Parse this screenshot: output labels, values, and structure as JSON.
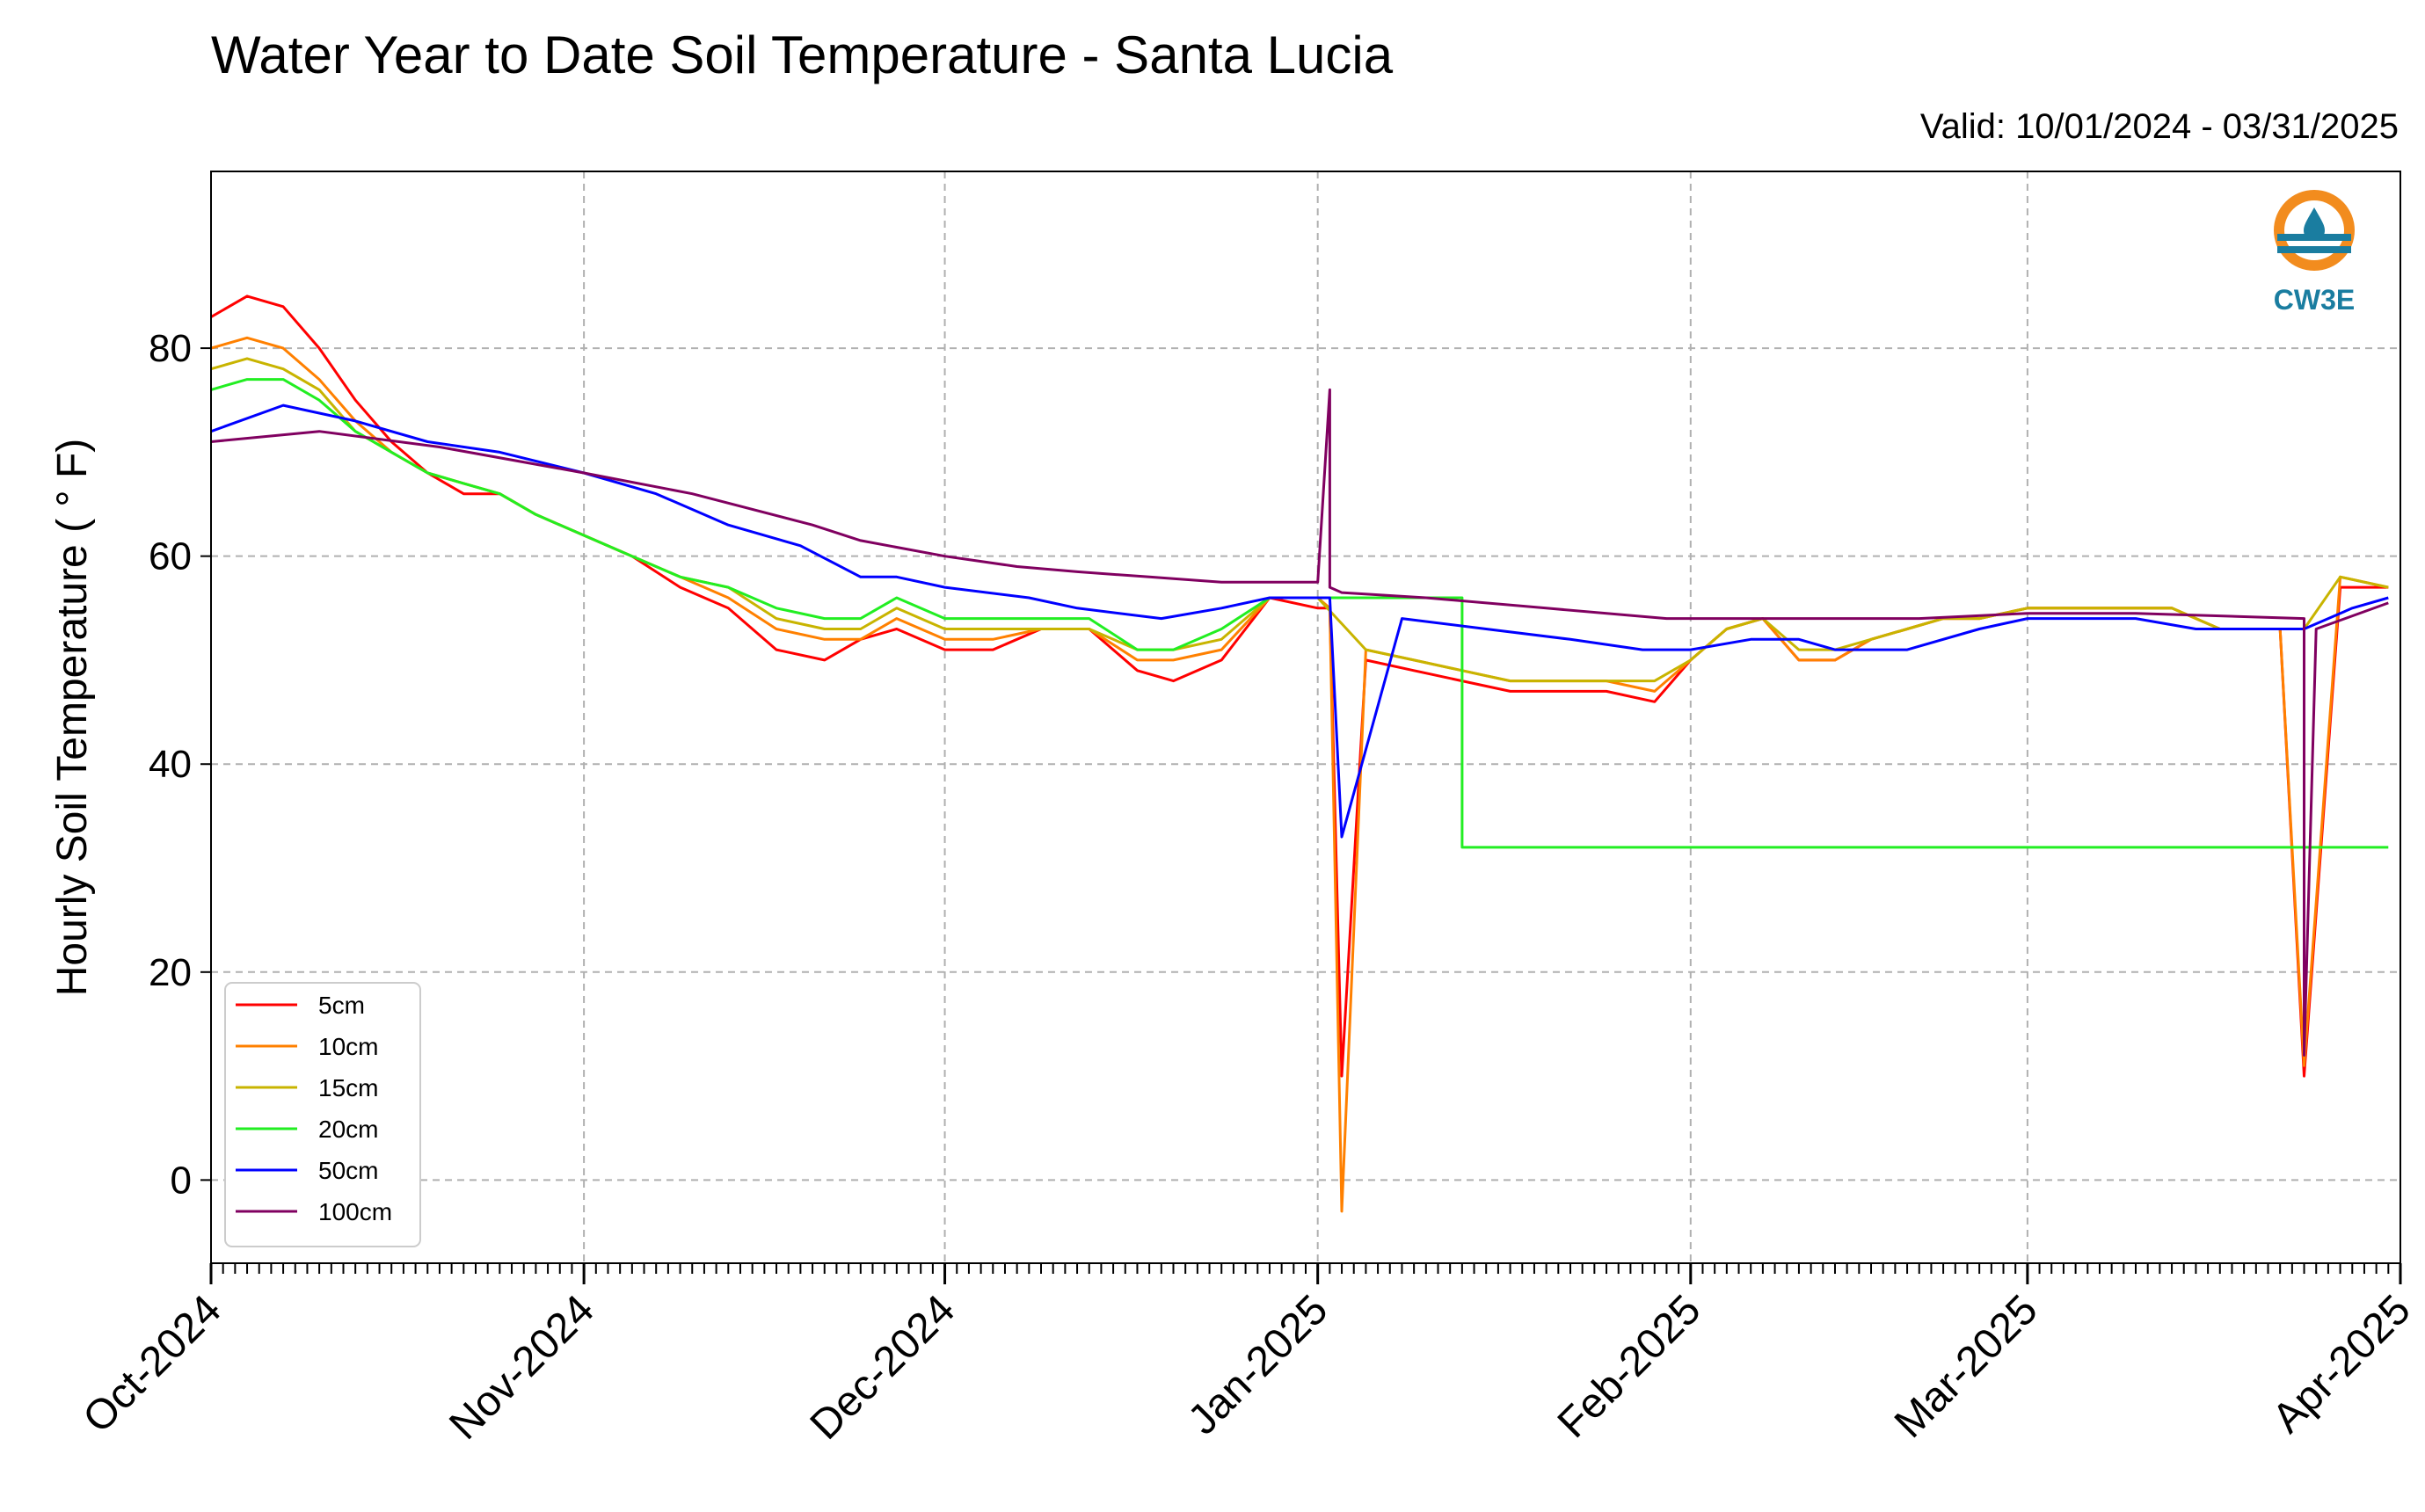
{
  "title": "Water Year to Date Soil Temperature - Santa Lucia",
  "valid": "Valid: 10/01/2024 - 03/31/2025",
  "logo_text": "CW3E",
  "chart_data": {
    "type": "line",
    "title": "Water Year to Date Soil Temperature - Santa Lucia",
    "ylabel": "Hourly Soil Temperature ( ° F)",
    "xlabel": "",
    "xlim": [
      "2024-10-01",
      "2025-04-01"
    ],
    "ylim": [
      -8,
      97
    ],
    "yticks": [
      0,
      20,
      40,
      60,
      80
    ],
    "xtick_labels": [
      "Oct-2024",
      "Nov-2024",
      "Dec-2024",
      "Jan-2025",
      "Feb-2025",
      "Mar-2025",
      "Apr-2025"
    ],
    "xtick_dates": [
      "2024-10-01",
      "2024-11-01",
      "2024-12-01",
      "2025-01-01",
      "2025-02-01",
      "2025-03-01",
      "2025-04-01"
    ],
    "grid": true,
    "legend_position": "lower-left",
    "series": [
      {
        "name": "5cm",
        "color": "#ff0000",
        "dates": [
          "2024-10-01",
          "2024-10-04",
          "2024-10-07",
          "2024-10-10",
          "2024-10-13",
          "2024-10-16",
          "2024-10-19",
          "2024-10-22",
          "2024-10-25",
          "2024-10-28",
          "2024-11-01",
          "2024-11-05",
          "2024-11-09",
          "2024-11-13",
          "2024-11-17",
          "2024-11-21",
          "2024-11-24",
          "2024-11-27",
          "2024-12-01",
          "2024-12-05",
          "2024-12-09",
          "2024-12-13",
          "2024-12-17",
          "2024-12-20",
          "2024-12-24",
          "2024-12-28",
          "2025-01-01",
          "2025-01-02",
          "2025-01-03",
          "2025-01-05",
          "2025-01-09",
          "2025-01-13",
          "2025-01-17",
          "2025-01-21",
          "2025-01-25",
          "2025-01-29",
          "2025-02-01",
          "2025-02-04",
          "2025-02-07",
          "2025-02-10",
          "2025-02-13",
          "2025-02-16",
          "2025-02-19",
          "2025-02-22",
          "2025-02-25",
          "2025-03-01",
          "2025-03-05",
          "2025-03-09",
          "2025-03-13",
          "2025-03-17",
          "2025-03-20",
          "2025-03-22",
          "2025-03-24",
          "2025-03-27",
          "2025-03-31"
        ],
        "values": [
          83,
          85,
          84,
          80,
          75,
          71,
          68,
          66,
          66,
          64,
          62,
          60,
          57,
          55,
          51,
          50,
          52,
          53,
          51,
          51,
          53,
          53,
          49,
          48,
          50,
          56,
          55,
          55,
          10,
          50,
          49,
          48,
          47,
          47,
          47,
          46,
          50,
          53,
          54,
          50,
          50,
          52,
          53,
          54,
          54,
          55,
          55,
          55,
          55,
          53,
          53,
          53,
          10,
          57,
          57
        ]
      },
      {
        "name": "10cm",
        "color": "#ff8000",
        "dates": [
          "2024-10-01",
          "2024-10-04",
          "2024-10-07",
          "2024-10-10",
          "2024-10-13",
          "2024-10-16",
          "2024-10-19",
          "2024-10-22",
          "2024-10-25",
          "2024-10-28",
          "2024-11-01",
          "2024-11-05",
          "2024-11-09",
          "2024-11-13",
          "2024-11-17",
          "2024-11-21",
          "2024-11-24",
          "2024-11-27",
          "2024-12-01",
          "2024-12-05",
          "2024-12-09",
          "2024-12-13",
          "2024-12-17",
          "2024-12-20",
          "2024-12-24",
          "2024-12-28",
          "2025-01-01",
          "2025-01-02",
          "2025-01-03",
          "2025-01-05",
          "2025-01-09",
          "2025-01-13",
          "2025-01-17",
          "2025-01-21",
          "2025-01-25",
          "2025-01-29",
          "2025-02-01",
          "2025-02-04",
          "2025-02-07",
          "2025-02-10",
          "2025-02-13",
          "2025-02-16",
          "2025-02-19",
          "2025-02-22",
          "2025-02-25",
          "2025-03-01",
          "2025-03-05",
          "2025-03-09",
          "2025-03-13",
          "2025-03-17",
          "2025-03-20",
          "2025-03-22",
          "2025-03-24",
          "2025-03-27",
          "2025-03-31"
        ],
        "values": [
          80,
          81,
          80,
          77,
          73,
          70,
          68,
          67,
          66,
          64,
          62,
          60,
          58,
          56,
          53,
          52,
          52,
          54,
          52,
          52,
          53,
          53,
          50,
          50,
          51,
          56,
          56,
          55,
          -3,
          51,
          50,
          49,
          48,
          48,
          48,
          47,
          50,
          53,
          54,
          50,
          50,
          52,
          53,
          54,
          54,
          55,
          55,
          55,
          55,
          53,
          53,
          53,
          11,
          58,
          57
        ]
      },
      {
        "name": "15cm",
        "color": "#c8b400",
        "dates": [
          "2024-10-01",
          "2024-10-04",
          "2024-10-07",
          "2024-10-10",
          "2024-10-13",
          "2024-10-16",
          "2024-10-19",
          "2024-10-22",
          "2024-10-25",
          "2024-10-28",
          "2024-11-01",
          "2024-11-05",
          "2024-11-09",
          "2024-11-13",
          "2024-11-17",
          "2024-11-21",
          "2024-11-24",
          "2024-11-27",
          "2024-12-01",
          "2024-12-05",
          "2024-12-09",
          "2024-12-13",
          "2024-12-17",
          "2024-12-20",
          "2024-12-24",
          "2024-12-28",
          "2025-01-01",
          "2025-01-05",
          "2025-01-09",
          "2025-01-13",
          "2025-01-17",
          "2025-01-21",
          "2025-01-25",
          "2025-01-29",
          "2025-02-01",
          "2025-02-04",
          "2025-02-07",
          "2025-02-10",
          "2025-02-13",
          "2025-02-16",
          "2025-02-19",
          "2025-02-22",
          "2025-02-25",
          "2025-03-01",
          "2025-03-05",
          "2025-03-09",
          "2025-03-13",
          "2025-03-17",
          "2025-03-20",
          "2025-03-24",
          "2025-03-27",
          "2025-03-31"
        ],
        "values": [
          78,
          79,
          78,
          76,
          72,
          70,
          68,
          67,
          66,
          64,
          62,
          60,
          58,
          57,
          54,
          53,
          53,
          55,
          53,
          53,
          53,
          53,
          51,
          51,
          52,
          56,
          56,
          51,
          50,
          49,
          48,
          48,
          48,
          48,
          50,
          53,
          54,
          51,
          51,
          52,
          53,
          54,
          54,
          55,
          55,
          55,
          55,
          53,
          53,
          53,
          58,
          57
        ]
      },
      {
        "name": "20cm",
        "color": "#22ee22",
        "dates": [
          "2024-10-01",
          "2024-10-04",
          "2024-10-07",
          "2024-10-10",
          "2024-10-13",
          "2024-10-16",
          "2024-10-19",
          "2024-10-22",
          "2024-10-25",
          "2024-10-28",
          "2024-11-01",
          "2024-11-05",
          "2024-11-09",
          "2024-11-13",
          "2024-11-17",
          "2024-11-21",
          "2024-11-24",
          "2024-11-27",
          "2024-12-01",
          "2024-12-05",
          "2024-12-09",
          "2024-12-13",
          "2024-12-17",
          "2024-12-20",
          "2024-12-24",
          "2024-12-28",
          "2025-01-13",
          "2025-01-13",
          "2025-03-31"
        ],
        "values": [
          76,
          77,
          77,
          75,
          72,
          70,
          68,
          67,
          66,
          64,
          62,
          60,
          58,
          57,
          55,
          54,
          54,
          56,
          54,
          54,
          54,
          54,
          51,
          51,
          53,
          56,
          56,
          32,
          32
        ]
      },
      {
        "name": "50cm",
        "color": "#0000ff",
        "dates": [
          "2024-10-01",
          "2024-10-07",
          "2024-10-13",
          "2024-10-19",
          "2024-10-25",
          "2024-11-01",
          "2024-11-07",
          "2024-11-13",
          "2024-11-19",
          "2024-11-24",
          "2024-11-27",
          "2024-12-01",
          "2024-12-08",
          "2024-12-12",
          "2024-12-19",
          "2024-12-24",
          "2024-12-28",
          "2025-01-01",
          "2025-01-02",
          "2025-01-03",
          "2025-01-08",
          "2025-01-15",
          "2025-01-22",
          "2025-01-28",
          "2025-02-01",
          "2025-02-06",
          "2025-02-10",
          "2025-02-13",
          "2025-02-19",
          "2025-02-25",
          "2025-03-01",
          "2025-03-10",
          "2025-03-15",
          "2025-03-21",
          "2025-03-24",
          "2025-03-28",
          "2025-03-31"
        ],
        "values": [
          72,
          74.5,
          73,
          71,
          70,
          68,
          66,
          63,
          61,
          58,
          58,
          57,
          56,
          55,
          54,
          55,
          56,
          56,
          56,
          33,
          54,
          53,
          52,
          51,
          51,
          52,
          52,
          51,
          51,
          53,
          54,
          54,
          53,
          53,
          53,
          55,
          56
        ]
      },
      {
        "name": "100cm",
        "color": "#800060",
        "dates": [
          "2024-10-01",
          "2024-10-10",
          "2024-10-20",
          "2024-11-01",
          "2024-11-10",
          "2024-11-20",
          "2024-11-24",
          "2024-12-01",
          "2024-12-07",
          "2024-12-12",
          "2024-12-18",
          "2024-12-24",
          "2025-01-01",
          "2025-01-02",
          "2025-01-02",
          "2025-01-03",
          "2025-01-10",
          "2025-01-20",
          "2025-01-30",
          "2025-02-10",
          "2025-02-20",
          "2025-03-01",
          "2025-03-10",
          "2025-03-24",
          "2025-03-24",
          "2025-03-25",
          "2025-03-31"
        ],
        "values": [
          71,
          72,
          70.5,
          68,
          66,
          63,
          61.5,
          60,
          59,
          58.5,
          58,
          57.5,
          57.5,
          76,
          57,
          56.5,
          56,
          55,
          54,
          54,
          54,
          54.5,
          54.5,
          54,
          12,
          53,
          55.5
        ]
      }
    ]
  }
}
